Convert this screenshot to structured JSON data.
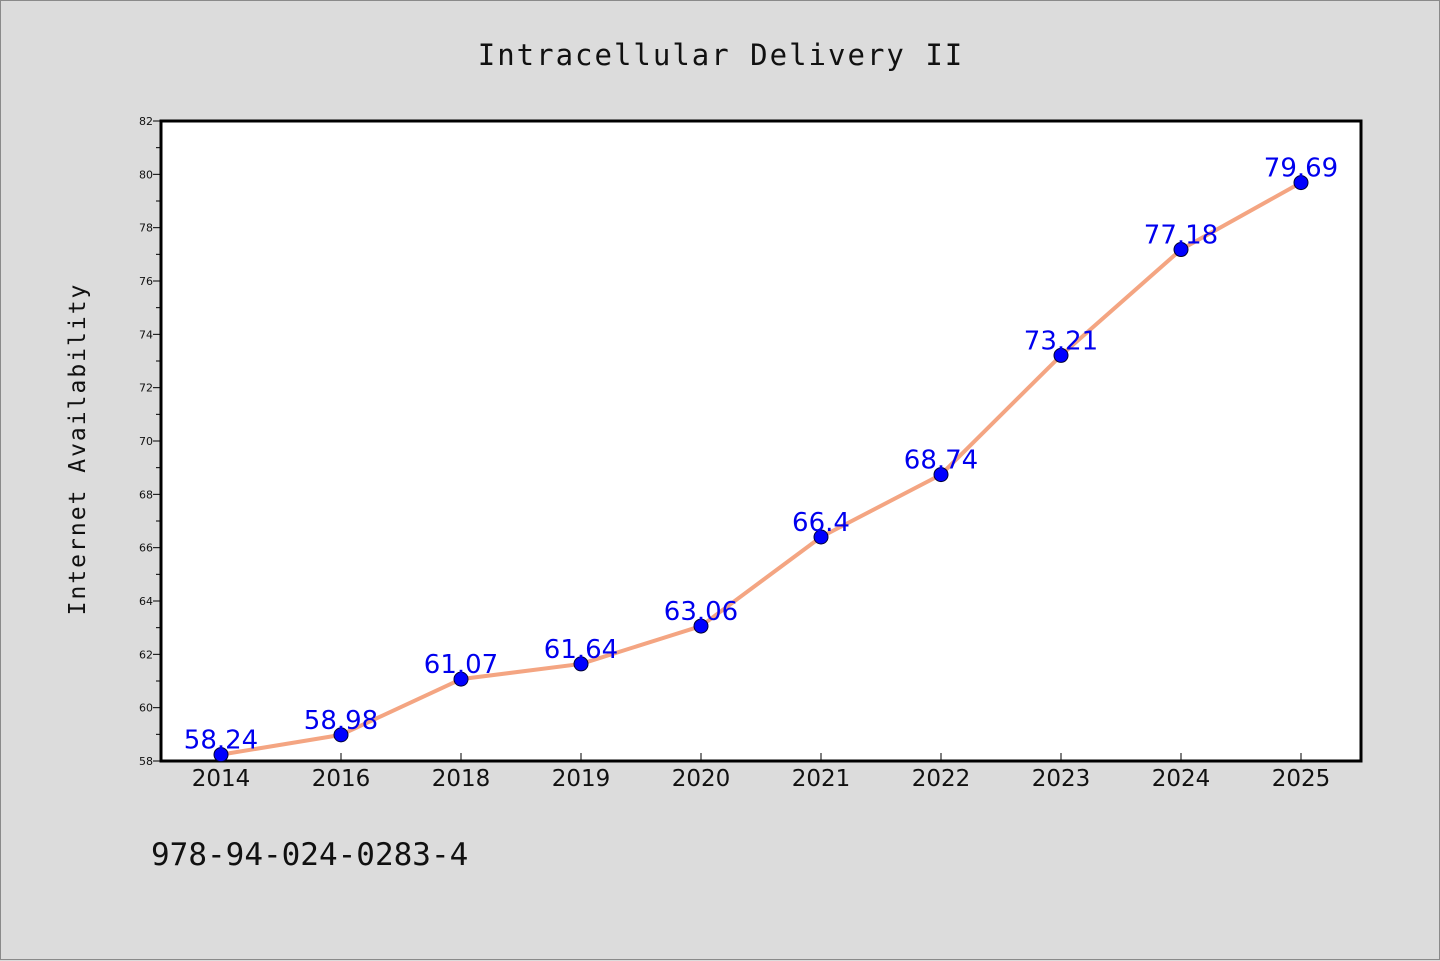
{
  "chart_data": {
    "type": "line",
    "title": "Intracellular Delivery II",
    "xlabel": "",
    "ylabel": "Internet Availability",
    "categories": [
      "2014",
      "2016",
      "2018",
      "2019",
      "2020",
      "2021",
      "2022",
      "2023",
      "2024",
      "2025"
    ],
    "series": [
      {
        "values": [
          58.24,
          58.98,
          61.07,
          61.64,
          63.06,
          66.4,
          68.74,
          73.21,
          77.18,
          79.69
        ],
        "labels": [
          "58.24",
          "58.98",
          "61.07",
          "61.64",
          "63.06",
          "66.4",
          "68.74",
          "73.21",
          "77.18",
          "79.69"
        ],
        "line_color": "#f4a582",
        "marker_color": "#0000ff"
      }
    ],
    "ylim": [
      58,
      82
    ],
    "yticks": [
      58,
      60,
      62,
      64,
      66,
      68,
      70,
      72,
      74,
      76,
      78,
      80,
      82
    ],
    "grid": false,
    "legend": "none"
  },
  "footnote": "978-94-024-0283-4",
  "colors": {
    "background": "#dcdcdc",
    "plot_area": "#ffffff",
    "line": "#f4a582",
    "marker": "#0000ff",
    "data_label": "#0000ee"
  }
}
